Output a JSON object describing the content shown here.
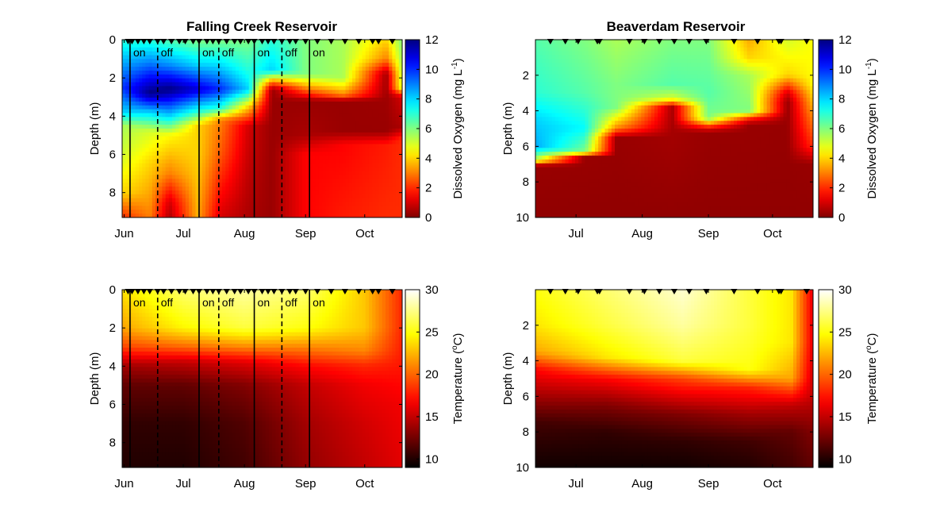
{
  "chart_data": [
    {
      "type": "heatmap",
      "id": "fcr-do",
      "title": "Falling Creek Reservoir",
      "ylabel": "Depth (m)",
      "colorbar_label": "Dissolved Oxygen (mg L",
      "colorbar_label_sup": "-1",
      "colorbar_label_end": ")",
      "colormap": "jet-reversed",
      "x_ticks": [
        "Jun",
        "Jul",
        "Aug",
        "Sep",
        "Oct"
      ],
      "y_ticks": [
        "0",
        "2",
        "4",
        "6",
        "8"
      ],
      "c_ticks": [
        "0",
        "2",
        "4",
        "6",
        "8",
        "10",
        "12"
      ],
      "ylim": [
        0,
        9.3
      ],
      "clim": [
        0,
        12
      ],
      "y_inverted": true,
      "sampling_dates": [
        "2018-06-03",
        "2018-06-05",
        "2018-06-08",
        "2018-06-11",
        "2018-06-14",
        "2018-06-18",
        "2018-06-21",
        "2018-06-25",
        "2018-06-29",
        "2018-07-02",
        "2018-07-06",
        "2018-07-09",
        "2018-07-13",
        "2018-07-16",
        "2018-07-19",
        "2018-07-23",
        "2018-07-27",
        "2018-07-30",
        "2018-08-03",
        "2018-08-06",
        "2018-08-10",
        "2018-08-13",
        "2018-08-16",
        "2018-08-20",
        "2018-08-24",
        "2018-08-27",
        "2018-09-01",
        "2018-09-07",
        "2018-09-14",
        "2018-09-21",
        "2018-09-28",
        "2018-10-05",
        "2018-10-08",
        "2018-10-15"
      ],
      "events": [
        {
          "date": "2018-06-04",
          "label": "on",
          "style": "solid"
        },
        {
          "date": "2018-06-18",
          "label": "off",
          "style": "dashed"
        },
        {
          "date": "2018-07-09",
          "label": "on",
          "style": "solid"
        },
        {
          "date": "2018-07-19",
          "label": "off",
          "style": "dashed"
        },
        {
          "date": "2018-08-06",
          "label": "on",
          "style": "solid"
        },
        {
          "date": "2018-08-20",
          "label": "off",
          "style": "dashed"
        },
        {
          "date": "2018-09-03",
          "label": "on",
          "style": "solid"
        }
      ]
    },
    {
      "type": "heatmap",
      "id": "bvr-do",
      "title": "Beaverdam Reservoir",
      "ylabel": "Depth (m)",
      "colorbar_label": "Dissolved Oxygen (mg L",
      "colorbar_label_sup": "-1",
      "colorbar_label_end": ")",
      "colormap": "jet-reversed",
      "x_ticks": [
        "Jul",
        "Aug",
        "Sep",
        "Oct"
      ],
      "y_ticks": [
        "2",
        "4",
        "6",
        "8",
        "10"
      ],
      "c_ticks": [
        "0",
        "2",
        "4",
        "6",
        "8",
        "10",
        "12"
      ],
      "ylim": [
        0,
        10
      ],
      "clim": [
        0,
        12
      ],
      "y_inverted": true,
      "sampling_dates": [
        "2018-06-19",
        "2018-06-26",
        "2018-07-02",
        "2018-07-11",
        "2018-07-12",
        "2018-07-26",
        "2018-08-02",
        "2018-08-09",
        "2018-08-16",
        "2018-08-23",
        "2018-08-31",
        "2018-09-13",
        "2018-09-24",
        "2018-10-04",
        "2018-10-05",
        "2018-10-17"
      ],
      "events": []
    },
    {
      "type": "heatmap",
      "id": "fcr-temp",
      "title": "",
      "ylabel": "Depth (m)",
      "colorbar_label": "Temperature (",
      "colorbar_label_sup": "o",
      "colorbar_label_end": "C)",
      "colormap": "hot",
      "x_ticks": [
        "Jun",
        "Jul",
        "Aug",
        "Sep",
        "Oct"
      ],
      "y_ticks": [
        "0",
        "2",
        "4",
        "6",
        "8"
      ],
      "c_ticks": [
        "10",
        "15",
        "20",
        "25",
        "30"
      ],
      "ylim": [
        0,
        9.3
      ],
      "clim": [
        9,
        30
      ],
      "y_inverted": true,
      "sampling_dates": [
        "2018-06-03",
        "2018-06-05",
        "2018-06-08",
        "2018-06-11",
        "2018-06-14",
        "2018-06-18",
        "2018-06-21",
        "2018-06-25",
        "2018-06-29",
        "2018-07-02",
        "2018-07-06",
        "2018-07-09",
        "2018-07-13",
        "2018-07-16",
        "2018-07-19",
        "2018-07-23",
        "2018-07-27",
        "2018-07-30",
        "2018-08-03",
        "2018-08-06",
        "2018-08-10",
        "2018-08-13",
        "2018-08-16",
        "2018-08-20",
        "2018-08-24",
        "2018-08-27",
        "2018-09-01",
        "2018-09-07",
        "2018-09-14",
        "2018-09-21",
        "2018-09-28",
        "2018-10-05",
        "2018-10-08",
        "2018-10-15"
      ],
      "events": [
        {
          "date": "2018-06-04",
          "label": "on",
          "style": "solid"
        },
        {
          "date": "2018-06-18",
          "label": "off",
          "style": "dashed"
        },
        {
          "date": "2018-07-09",
          "label": "on",
          "style": "solid"
        },
        {
          "date": "2018-07-19",
          "label": "off",
          "style": "dashed"
        },
        {
          "date": "2018-08-06",
          "label": "on",
          "style": "solid"
        },
        {
          "date": "2018-08-20",
          "label": "off",
          "style": "dashed"
        },
        {
          "date": "2018-09-03",
          "label": "on",
          "style": "solid"
        }
      ]
    },
    {
      "type": "heatmap",
      "id": "bvr-temp",
      "title": "",
      "ylabel": "Depth (m)",
      "colorbar_label": "Temperature (",
      "colorbar_label_sup": "o",
      "colorbar_label_end": "C)",
      "colormap": "hot",
      "x_ticks": [
        "Jul",
        "Aug",
        "Sep",
        "Oct"
      ],
      "y_ticks": [
        "2",
        "4",
        "6",
        "8",
        "10"
      ],
      "c_ticks": [
        "10",
        "15",
        "20",
        "25",
        "30"
      ],
      "ylim": [
        0,
        10
      ],
      "clim": [
        9,
        30
      ],
      "y_inverted": true,
      "sampling_dates": [
        "2018-06-19",
        "2018-06-26",
        "2018-07-02",
        "2018-07-11",
        "2018-07-12",
        "2018-07-26",
        "2018-08-02",
        "2018-08-09",
        "2018-08-16",
        "2018-08-23",
        "2018-08-31",
        "2018-09-13",
        "2018-09-24",
        "2018-10-04",
        "2018-10-05",
        "2018-10-17"
      ],
      "events": []
    }
  ]
}
